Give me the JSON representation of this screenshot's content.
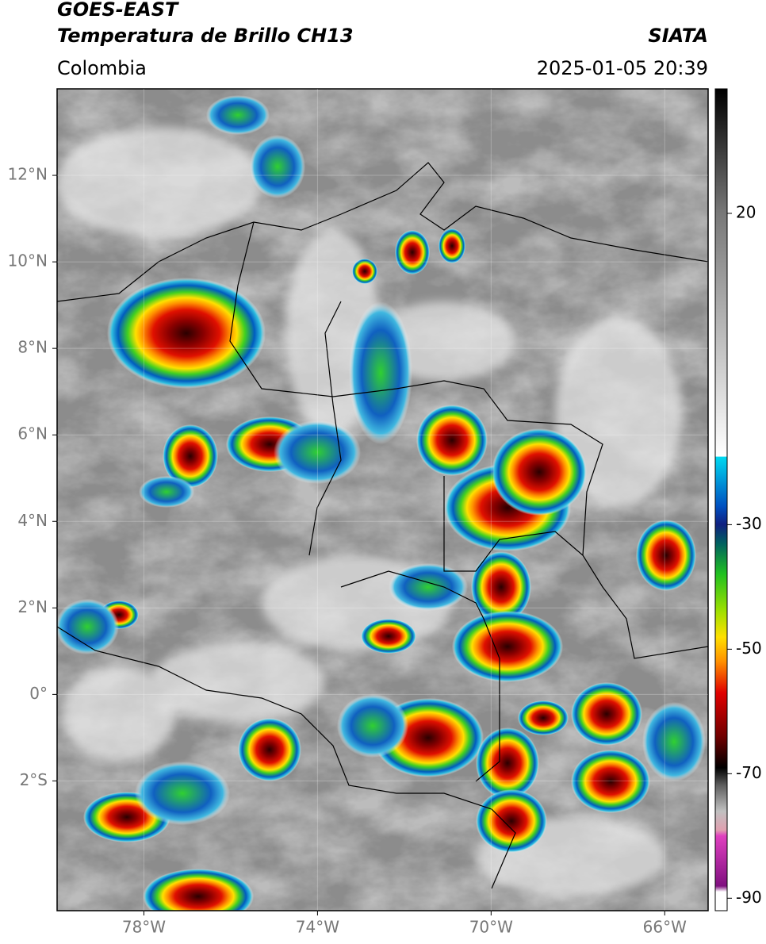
{
  "header": {
    "title": "GOES-EAST",
    "subtitle": "Temperatura de Brillo CH13",
    "source": "SIATA",
    "region": "Colombia",
    "datetime": "2025-01-05 20:39"
  },
  "map": {
    "xlim": [
      -80,
      -65
    ],
    "ylim": [
      -5,
      14
    ],
    "xticks": [
      {
        "value": -78,
        "label": "78°W"
      },
      {
        "value": -74,
        "label": "74°W"
      },
      {
        "value": -70,
        "label": "70°W"
      },
      {
        "value": -66,
        "label": "66°W"
      }
    ],
    "yticks": [
      {
        "value": 12,
        "label": "12°N"
      },
      {
        "value": 10,
        "label": "10°N"
      },
      {
        "value": 8,
        "label": "8°N"
      },
      {
        "value": 6,
        "label": "6°N"
      },
      {
        "value": 4,
        "label": "4°N"
      },
      {
        "value": 2,
        "label": "2°N"
      },
      {
        "value": 0,
        "label": "0°"
      },
      {
        "value": -2,
        "label": "2°S"
      }
    ]
  },
  "colorbar": {
    "lim": [
      -92,
      40
    ],
    "ticks": [
      20,
      -30,
      -50,
      -70,
      -90
    ]
  }
}
